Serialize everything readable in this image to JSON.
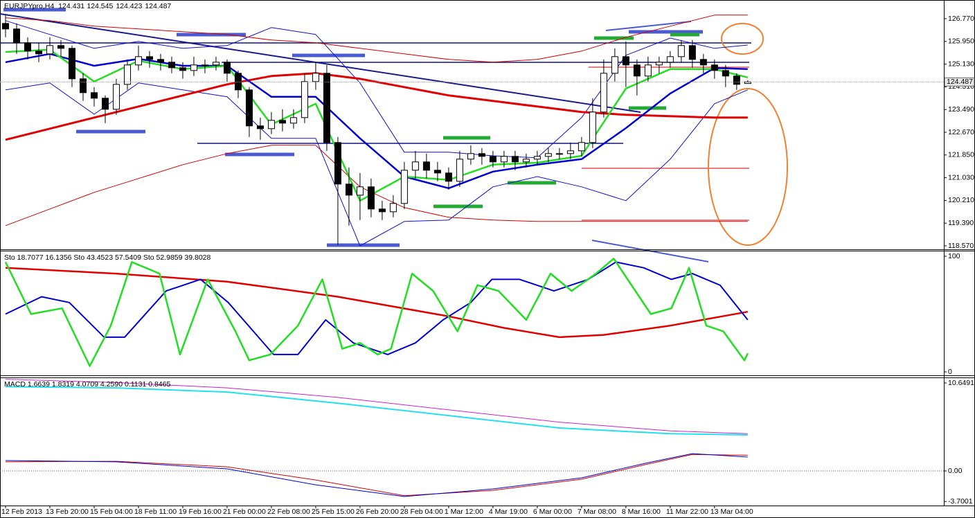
{
  "chart_data": [
    {
      "type": "candlestick",
      "title": "EURJPYpro,H4",
      "categories": [
        "12 Feb 2013",
        null,
        null,
        null,
        "13 Feb 20:00",
        null,
        null,
        null,
        "15 Feb 04:00",
        null,
        null,
        null,
        "18 Feb 11:00",
        null,
        null,
        null,
        "19 Feb 16:00",
        null,
        null,
        null,
        "21 Feb 00:00",
        null,
        null,
        null,
        "22 Feb 08:00",
        null,
        null,
        null,
        "25 Feb 15:00",
        null,
        null,
        null,
        "26 Feb 20:00",
        null,
        null,
        null,
        "28 Feb 04:00",
        null,
        null,
        null,
        "1 Mar 12:00",
        null,
        null,
        null,
        "4 Mar 19:00",
        null,
        null,
        null,
        "6 Mar 00:00",
        null,
        null,
        null,
        "7 Mar 08:00",
        null,
        null,
        null,
        "8 Mar 16:00",
        null,
        null,
        null,
        "11 Mar 22:00",
        null,
        null,
        null,
        "13 Mar 04:00",
        null,
        null,
        null
      ],
      "open": [
        126.6,
        126.4,
        125.9,
        125.6,
        125.5,
        125.8,
        125.7,
        124.6,
        124.1,
        123.9,
        123.5,
        124.4,
        125.1,
        125.4,
        125.3,
        125.2,
        125.0,
        124.9,
        125.1,
        125.1,
        125.2,
        124.8,
        124.2,
        122.9,
        122.8,
        123.1,
        123.0,
        123.2,
        124.5,
        124.8,
        122.3,
        120.8,
        120.4,
        120.7,
        119.9,
        119.8,
        120.1,
        121.3,
        121.6,
        121.3,
        121.2,
        120.9,
        121.7,
        121.9,
        121.8,
        121.6,
        121.8,
        121.6,
        121.7,
        121.8,
        121.9,
        121.9,
        122.0,
        122.3,
        123.4,
        124.8,
        125.4,
        125.1,
        124.7,
        125.1,
        125.2,
        125.4,
        125.8,
        125.3,
        125.1,
        124.9,
        124.7,
        124.431
      ],
      "high": [
        126.9,
        126.6,
        126.1,
        125.9,
        126.1,
        126.0,
        125.8,
        124.8,
        124.3,
        124.0,
        124.6,
        125.3,
        125.8,
        125.6,
        125.5,
        125.4,
        125.2,
        125.4,
        125.3,
        125.4,
        125.3,
        124.9,
        124.3,
        123.2,
        123.4,
        123.5,
        123.5,
        124.8,
        125.2,
        125.1,
        122.5,
        121.4,
        121.2,
        121.0,
        120.2,
        120.4,
        121.6,
        122.0,
        121.9,
        121.6,
        121.4,
        122.0,
        122.2,
        122.1,
        122.0,
        122.0,
        122.0,
        121.9,
        122.0,
        122.1,
        122.1,
        122.3,
        122.5,
        123.9,
        125.3,
        125.7,
        125.95,
        125.3,
        125.4,
        125.4,
        125.6,
        126.0,
        126.0,
        125.5,
        125.3,
        125.1,
        124.8,
        124.545
      ],
      "low": [
        126.1,
        125.5,
        125.3,
        125.2,
        125.3,
        125.4,
        124.3,
        123.8,
        123.6,
        123.0,
        123.3,
        124.2,
        124.9,
        125.0,
        124.9,
        124.8,
        124.6,
        124.7,
        124.8,
        124.9,
        124.5,
        123.9,
        122.5,
        122.4,
        122.6,
        122.7,
        122.8,
        123.0,
        124.2,
        122.0,
        118.6,
        119.3,
        119.5,
        119.6,
        119.5,
        119.6,
        119.9,
        121.0,
        121.0,
        120.9,
        120.6,
        120.7,
        121.5,
        121.5,
        121.4,
        121.4,
        121.3,
        121.4,
        121.5,
        121.6,
        121.7,
        121.7,
        121.8,
        122.1,
        123.2,
        124.5,
        124.3,
        124.0,
        124.5,
        124.8,
        125.0,
        125.2,
        125.0,
        124.8,
        124.6,
        124.3,
        124.2,
        124.423
      ],
      "close": [
        126.4,
        125.9,
        125.6,
        125.5,
        125.8,
        125.7,
        124.6,
        124.1,
        123.9,
        123.5,
        124.4,
        125.1,
        125.4,
        125.3,
        125.2,
        125.0,
        124.9,
        125.1,
        125.1,
        125.2,
        124.8,
        124.2,
        122.9,
        122.8,
        123.1,
        123.0,
        123.2,
        124.5,
        124.8,
        122.3,
        120.8,
        120.4,
        120.7,
        119.9,
        119.8,
        120.1,
        121.3,
        121.6,
        121.3,
        121.2,
        120.9,
        121.7,
        121.9,
        121.8,
        121.6,
        121.8,
        121.6,
        121.7,
        121.8,
        121.9,
        121.9,
        122.0,
        122.3,
        123.4,
        124.8,
        125.4,
        125.1,
        124.7,
        125.1,
        125.2,
        125.4,
        125.8,
        125.3,
        125.1,
        124.9,
        124.7,
        124.4,
        124.487
      ],
      "xlim": [
        -0.5,
        84.7
      ],
      "ylim": [
        118.445,
        127.445
      ],
      "yticks": [
        {
          "value": 126.77,
          "label": "126.770"
        },
        {
          "value": 125.95,
          "label": "125.950"
        },
        {
          "value": 125.13,
          "label": "125.130"
        },
        {
          "value": 124.31,
          "label": "124.310"
        },
        {
          "value": 123.49,
          "label": "123.490"
        },
        {
          "value": 122.67,
          "label": "122.670"
        },
        {
          "value": 121.85,
          "label": "121.850"
        },
        {
          "value": 121.03,
          "label": "121.030"
        },
        {
          "value": 120.21,
          "label": "120.210"
        },
        {
          "value": 119.39,
          "label": "119.390"
        },
        {
          "value": 118.57,
          "label": "118.570"
        }
      ],
      "series": [
        {
          "color": "#1010c8",
          "width": 1,
          "x": [
            0,
            4,
            8,
            12,
            16,
            20,
            24,
            28,
            32,
            36,
            40,
            44,
            48,
            52,
            56,
            60,
            64,
            67
          ],
          "values": [
            126.7,
            126.2,
            125.7,
            125.95,
            125.7,
            125.8,
            126.45,
            126.2,
            124.45,
            121.95,
            121.95,
            121.82,
            121.75,
            123.2,
            125.45,
            126.07,
            125.7,
            125.82
          ]
        },
        {
          "color": "#1010c8",
          "width": 1,
          "x": [
            0,
            4,
            8,
            12,
            16,
            20,
            24,
            28,
            32,
            36,
            40,
            44,
            48,
            52,
            56,
            60,
            64,
            67
          ],
          "values": [
            124.2,
            124.45,
            123.32,
            124.45,
            124.2,
            123.95,
            122.45,
            122.45,
            118.57,
            119.45,
            119.5,
            120.7,
            121.07,
            120.7,
            120.2,
            121.7,
            123.7,
            124.2
          ]
        },
        {
          "color": "#d00000",
          "width": 1,
          "x": [
            0,
            4,
            8,
            12,
            16,
            20,
            24,
            28,
            32,
            36,
            40,
            44,
            48,
            52,
            56,
            60,
            64,
            67
          ],
          "values": [
            126.8,
            126.7,
            126.5,
            126.4,
            126.3,
            126.2,
            126.0,
            125.9,
            125.7,
            125.5,
            125.3,
            125.2,
            125.3,
            125.6,
            126.1,
            126.5,
            126.9,
            126.9
          ]
        },
        {
          "color": "#d00000",
          "width": 1,
          "x": [
            0,
            4,
            8,
            12,
            16,
            20,
            24,
            28,
            32,
            36,
            40,
            44,
            48,
            52,
            56,
            60,
            64,
            67
          ],
          "values": [
            119.3,
            119.9,
            120.5,
            121.0,
            121.5,
            121.9,
            122.2,
            122.2,
            120.7,
            119.95,
            119.6,
            119.5,
            119.45,
            119.45,
            119.45,
            119.45,
            119.45,
            119.45
          ]
        },
        {
          "color": "#e00000",
          "width": 3,
          "x": [
            0,
            4,
            8,
            12,
            16,
            20,
            24,
            28,
            32,
            36,
            40,
            44,
            48,
            52,
            56,
            60,
            64,
            67
          ],
          "values": [
            122.4,
            122.8,
            123.2,
            123.6,
            124.0,
            124.4,
            124.7,
            124.8,
            124.6,
            124.3,
            124.0,
            123.8,
            123.6,
            123.4,
            123.3,
            123.25,
            123.2,
            123.2
          ]
        },
        {
          "color": "#0000d0",
          "width": 2.5,
          "x": [
            0,
            4,
            8,
            12,
            16,
            20,
            24,
            28,
            32,
            36,
            40,
            44,
            48,
            52,
            56,
            60,
            64,
            67
          ],
          "values": [
            125.2,
            125.5,
            125.07,
            125.32,
            125.07,
            125.07,
            123.95,
            123.95,
            122.45,
            121.07,
            120.65,
            121.25,
            121.5,
            121.7,
            122.82,
            124.07,
            124.99,
            124.95
          ]
        },
        {
          "color": "#22dd22",
          "width": 2.5,
          "x": [
            0,
            4,
            8,
            12,
            16,
            20,
            24,
            28,
            32,
            36,
            40,
            44,
            48,
            52,
            56,
            60,
            64,
            67
          ],
          "values": [
            125.57,
            125.65,
            124.5,
            125.25,
            124.95,
            125.07,
            122.95,
            123.7,
            120.2,
            121.07,
            120.95,
            121.5,
            121.57,
            121.82,
            124.25,
            124.95,
            124.95,
            124.65
          ]
        }
      ]
    },
    {
      "type": "line",
      "title": "Sto 18.7077 16.1356  Sto 43.4523 57.5409  Sto 52.9859 39.8028",
      "xlim": [
        -0.5,
        84.7
      ],
      "ylim": [
        -3,
        104.8
      ],
      "yticks": [
        0,
        100
      ],
      "series": [
        {
          "color": "#e00000",
          "width": 2.5,
          "x": [
            0,
            10,
            20,
            30,
            40,
            45,
            50,
            54,
            60,
            67
          ],
          "values": [
            90,
            85,
            78,
            65,
            48,
            38,
            30,
            32,
            40,
            52
          ]
        },
        {
          "color": "#0000d0",
          "width": 2,
          "x": [
            0,
            3.25,
            5.75,
            8.9,
            10.75,
            14.5,
            17.6,
            20.1,
            24.2,
            26.4,
            28.9,
            31.4,
            34.5,
            37,
            39.5,
            42,
            43.9,
            46.4,
            49.5,
            52.6,
            55.1,
            57.6,
            60.1,
            62,
            64.5,
            67
          ],
          "values": [
            50,
            65,
            60,
            30,
            30,
            70,
            80,
            60,
            15,
            15,
            45,
            25,
            15,
            25,
            45,
            60,
            80,
            80,
            70,
            80,
            95,
            90,
            80,
            85,
            75,
            45
          ]
        },
        {
          "color": "#22dd22",
          "width": 2.5,
          "x": [
            0,
            2.3,
            5.1,
            7.6,
            9.5,
            11.4,
            13.9,
            15.75,
            18.25,
            20.75,
            22,
            23.9,
            26.4,
            28.6,
            30.4,
            32,
            33.6,
            34.8,
            36.7,
            38.6,
            40.8,
            42.6,
            44.5,
            47,
            49.2,
            51.1,
            53.3,
            54.9,
            58.25,
            60.1,
            61.7,
            63.25,
            64.8,
            66.7,
            67
          ],
          "values": [
            95,
            50,
            55,
            5,
            40,
            95,
            85,
            15,
            80,
            35,
            10,
            15,
            40,
            80,
            20,
            25,
            15,
            20,
            85,
            70,
            35,
            75,
            70,
            45,
            85,
            70,
            85,
            98,
            50,
            55,
            90,
            40,
            35,
            10,
            16
          ]
        }
      ]
    },
    {
      "type": "line",
      "title": "MACD 1.6639 1.8319 4.0709 4.2590 0.1131 0.8465",
      "xlim": [
        -0.5,
        84.7
      ],
      "ylim": [
        -4.19,
        11.32
      ],
      "yticks": [
        10.6491,
        {
          "value": 0,
          "label": "0.00"
        },
        -3.7001
      ],
      "zero_line": true,
      "series": [
        {
          "color": "#cc22cc",
          "width": 1,
          "x": [
            0,
            10,
            20,
            30,
            40,
            50,
            60,
            67
          ],
          "values": [
            11.1,
            10.7,
            10.05,
            8.9,
            7.4,
            5.9,
            4.85,
            4.5
          ]
        },
        {
          "color": "#22e0f0",
          "width": 2,
          "x": [
            0,
            10,
            20,
            30,
            40,
            50,
            60,
            67
          ],
          "values": [
            10.2,
            10.05,
            9.55,
            8.2,
            6.7,
            5.2,
            4.5,
            4.36
          ]
        },
        {
          "color": "#d00000",
          "width": 1,
          "x": [
            0,
            10,
            20,
            28,
            36,
            44,
            52,
            58,
            62,
            67
          ],
          "values": [
            1.1,
            1.17,
            0.5,
            -1.1,
            -3.0,
            -2.35,
            -1.0,
            0.84,
            2.0,
            1.9
          ]
        },
        {
          "color": "#0000d0",
          "width": 1,
          "x": [
            0,
            10,
            20,
            28,
            36,
            44,
            52,
            58,
            62,
            67
          ],
          "values": [
            1.26,
            1.1,
            0.25,
            -1.68,
            -3.1,
            -2.18,
            -0.84,
            1.0,
            2.1,
            1.68
          ]
        }
      ]
    }
  ]
}
